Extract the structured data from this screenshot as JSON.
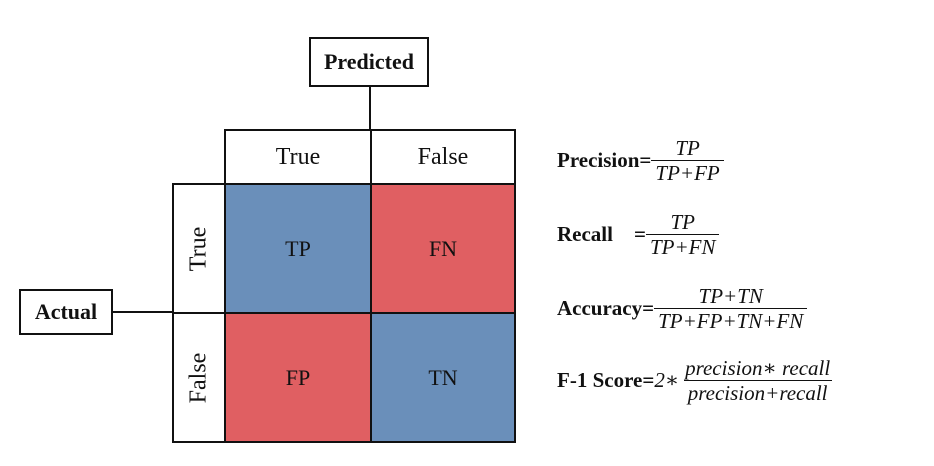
{
  "predicted_label": "Predicted",
  "actual_label": "Actual",
  "columns": [
    "True",
    "False"
  ],
  "rows": [
    "True",
    "False"
  ],
  "cells": {
    "tp": "TP",
    "fn": "FN",
    "fp": "FP",
    "tn": "TN"
  },
  "colors": {
    "blue_cell": "#6a8fba",
    "red_cell": "#e05f62"
  },
  "formulas": {
    "precision": {
      "name": "Precision=",
      "numerator": "TP",
      "denominator": "TP+FP"
    },
    "recall": {
      "name": "Recall    =",
      "numerator": "TP",
      "denominator": "TP+FN"
    },
    "accuracy": {
      "name": "Accuracy=",
      "numerator": "TP+TN",
      "denominator": "TP+FP+TN+FN"
    },
    "f1": {
      "name": "F-1 Score=",
      "coefficient": "2∗",
      "numerator": "precision∗ recall",
      "denominator": "precision+recall"
    }
  }
}
